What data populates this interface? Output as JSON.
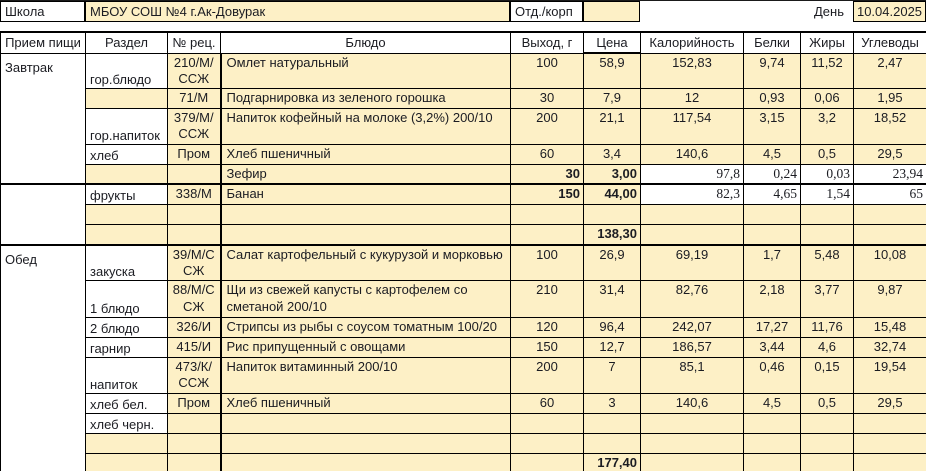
{
  "colors": {
    "cell_fill": "#fdf0c6",
    "border": "#000000",
    "text": "#1b1c22"
  },
  "top_bar": {
    "school_label": "Школа",
    "school_name": "МБОУ СОШ №4 г.Ак-Довурак",
    "dept_label": "Отд./корп",
    "dept_value": "",
    "day_label": "День",
    "date_value": "10.04.2025"
  },
  "table": {
    "columns": [
      "Прием пищи",
      "Раздел",
      "№ рец.",
      "Блюдо",
      "Выход, г",
      "Цена",
      "Калорийность",
      "Белки",
      "Жиры",
      "Углеводы"
    ],
    "rows": [
      {
        "meal": {
          "label": "Завтрак",
          "span": 5
        },
        "razdel": "гор.блюдо",
        "rec": "210/М/ССЖ",
        "dish": "Омлет натуральный",
        "out": "100",
        "price": "58,9",
        "cal": "152,83",
        "prot": "9,74",
        "fat": "11,52",
        "carb": "2,47",
        "tall": true
      },
      {
        "razdel": "",
        "rec": "71/М",
        "dish": "Подгарнировка из зеленого горошка",
        "out": "30",
        "price": "7,9",
        "cal": "12",
        "prot": "0,93",
        "fat": "0,06",
        "carb": "1,95"
      },
      {
        "razdel": "гор.напиток",
        "rec": "379/М/ССЖ",
        "dish": "Напиток кофейный на молоке (3,2%) 200/10",
        "out": "200",
        "price": "21,1",
        "cal": "117,54",
        "prot": "3,15",
        "fat": "3,2",
        "carb": "18,52",
        "tall": true
      },
      {
        "razdel": "хлеб",
        "rec": "Пром",
        "dish": "Хлеб пшеничный",
        "out": "60",
        "price": "3,4",
        "cal": "140,6",
        "prot": "4,5",
        "fat": "0,5",
        "carb": "29,5"
      },
      {
        "razdel": "",
        "rec": "",
        "dish": "Зефир",
        "out": "30",
        "price": "3,00",
        "cal": "97,8",
        "prot": "0,24",
        "fat": "0,03",
        "carb": "23,94",
        "manual": true
      },
      {
        "meal": {
          "label": "",
          "span": 3
        },
        "razdel": "фрукты",
        "rec": "338/М",
        "dish": "Банан",
        "out": "150",
        "price": "44,00",
        "cal": "82,3",
        "prot": "4,65",
        "fat": "1,54",
        "carb": "65",
        "manual": true,
        "thick_top": true
      },
      {
        "razdel": "",
        "rec": "",
        "dish": "",
        "out": "",
        "price": "",
        "cal": "",
        "prot": "",
        "fat": "",
        "carb": ""
      },
      {
        "razdel": "",
        "rec": "",
        "dish": "",
        "out": "",
        "price": "138,30",
        "cal": "",
        "prot": "",
        "fat": "",
        "carb": "",
        "total": true
      },
      {
        "meal": {
          "label": "Обед",
          "span": 9
        },
        "razdel": "закуска",
        "rec": "39/М/ССЖ",
        "dish": "Салат картофельный с кукурузой и морковью",
        "out": "100",
        "price": "26,9",
        "cal": "69,19",
        "prot": "1,7",
        "fat": "5,48",
        "carb": "10,08",
        "tall": true,
        "thick_top": true
      },
      {
        "razdel": "1 блюдо",
        "rec": "88/М/ССЖ",
        "dish": "Щи из свежей капусты с картофелем со сметаной 200/10",
        "out": "210",
        "price": "31,4",
        "cal": "82,76",
        "prot": "2,18",
        "fat": "3,77",
        "carb": "9,87",
        "tall": true
      },
      {
        "razdel": "2 блюдо",
        "rec": "326/И",
        "dish": "Стрипсы из рыбы с соусом томатным 100/20",
        "out": "120",
        "price": "96,4",
        "cal": "242,07",
        "prot": "17,27",
        "fat": "11,76",
        "carb": "15,48"
      },
      {
        "razdel": "гарнир",
        "rec": "415/И",
        "dish": "Рис припущенный с овощами",
        "out": "150",
        "price": "12,7",
        "cal": "186,57",
        "prot": "3,44",
        "fat": "4,6",
        "carb": "32,74"
      },
      {
        "razdel": "напиток",
        "rec": "473/К/ССЖ",
        "dish": "Напиток витаминный 200/10",
        "out": "200",
        "price": "7",
        "cal": "85,1",
        "prot": "0,46",
        "fat": "0,15",
        "carb": "19,54",
        "tall": true
      },
      {
        "razdel": "хлеб бел.",
        "rec": "Пром",
        "dish": "Хлеб пшеничный",
        "out": "60",
        "price": "3",
        "cal": "140,6",
        "prot": "4,5",
        "fat": "0,5",
        "carb": "29,5"
      },
      {
        "razdel": "хлеб черн.",
        "rec": "",
        "dish": "",
        "out": "",
        "price": "",
        "cal": "",
        "prot": "",
        "fat": "",
        "carb": ""
      },
      {
        "razdel": "",
        "rec": "",
        "dish": "",
        "out": "",
        "price": "",
        "cal": "",
        "prot": "",
        "fat": "",
        "carb": ""
      },
      {
        "razdel": "",
        "rec": "",
        "dish": "",
        "out": "",
        "price": "177,40",
        "cal": "",
        "prot": "",
        "fat": "",
        "carb": "",
        "total": true
      }
    ]
  }
}
